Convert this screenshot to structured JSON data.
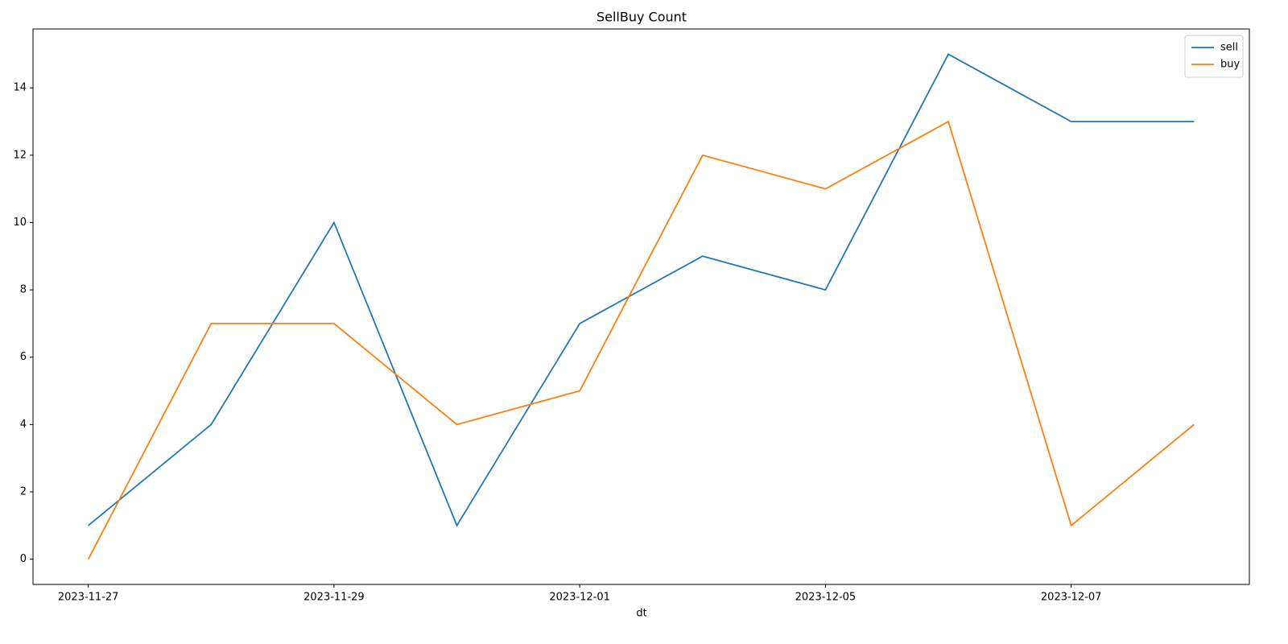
{
  "chart_data": {
    "type": "line",
    "title": "SellBuy Count",
    "x_label": "dt",
    "categories": [
      "2023-11-27",
      null,
      "2023-11-29",
      null,
      "2023-12-01",
      null,
      "2023-12-05",
      null,
      "2023-12-07",
      null
    ],
    "series": [
      {
        "name": "sell",
        "color": "#1f77b4",
        "values": [
          1,
          4,
          10,
          1,
          7,
          9,
          8,
          15,
          13,
          13
        ]
      },
      {
        "name": "buy",
        "color": "#ff7f0e",
        "values": [
          0,
          7,
          7,
          4,
          5,
          12,
          11,
          13,
          1,
          4
        ]
      }
    ],
    "ylim": [
      -0.75,
      15.75
    ],
    "yticks": [
      0,
      2,
      4,
      6,
      8,
      10,
      12,
      14
    ],
    "grid": false,
    "legend": "upper right"
  }
}
